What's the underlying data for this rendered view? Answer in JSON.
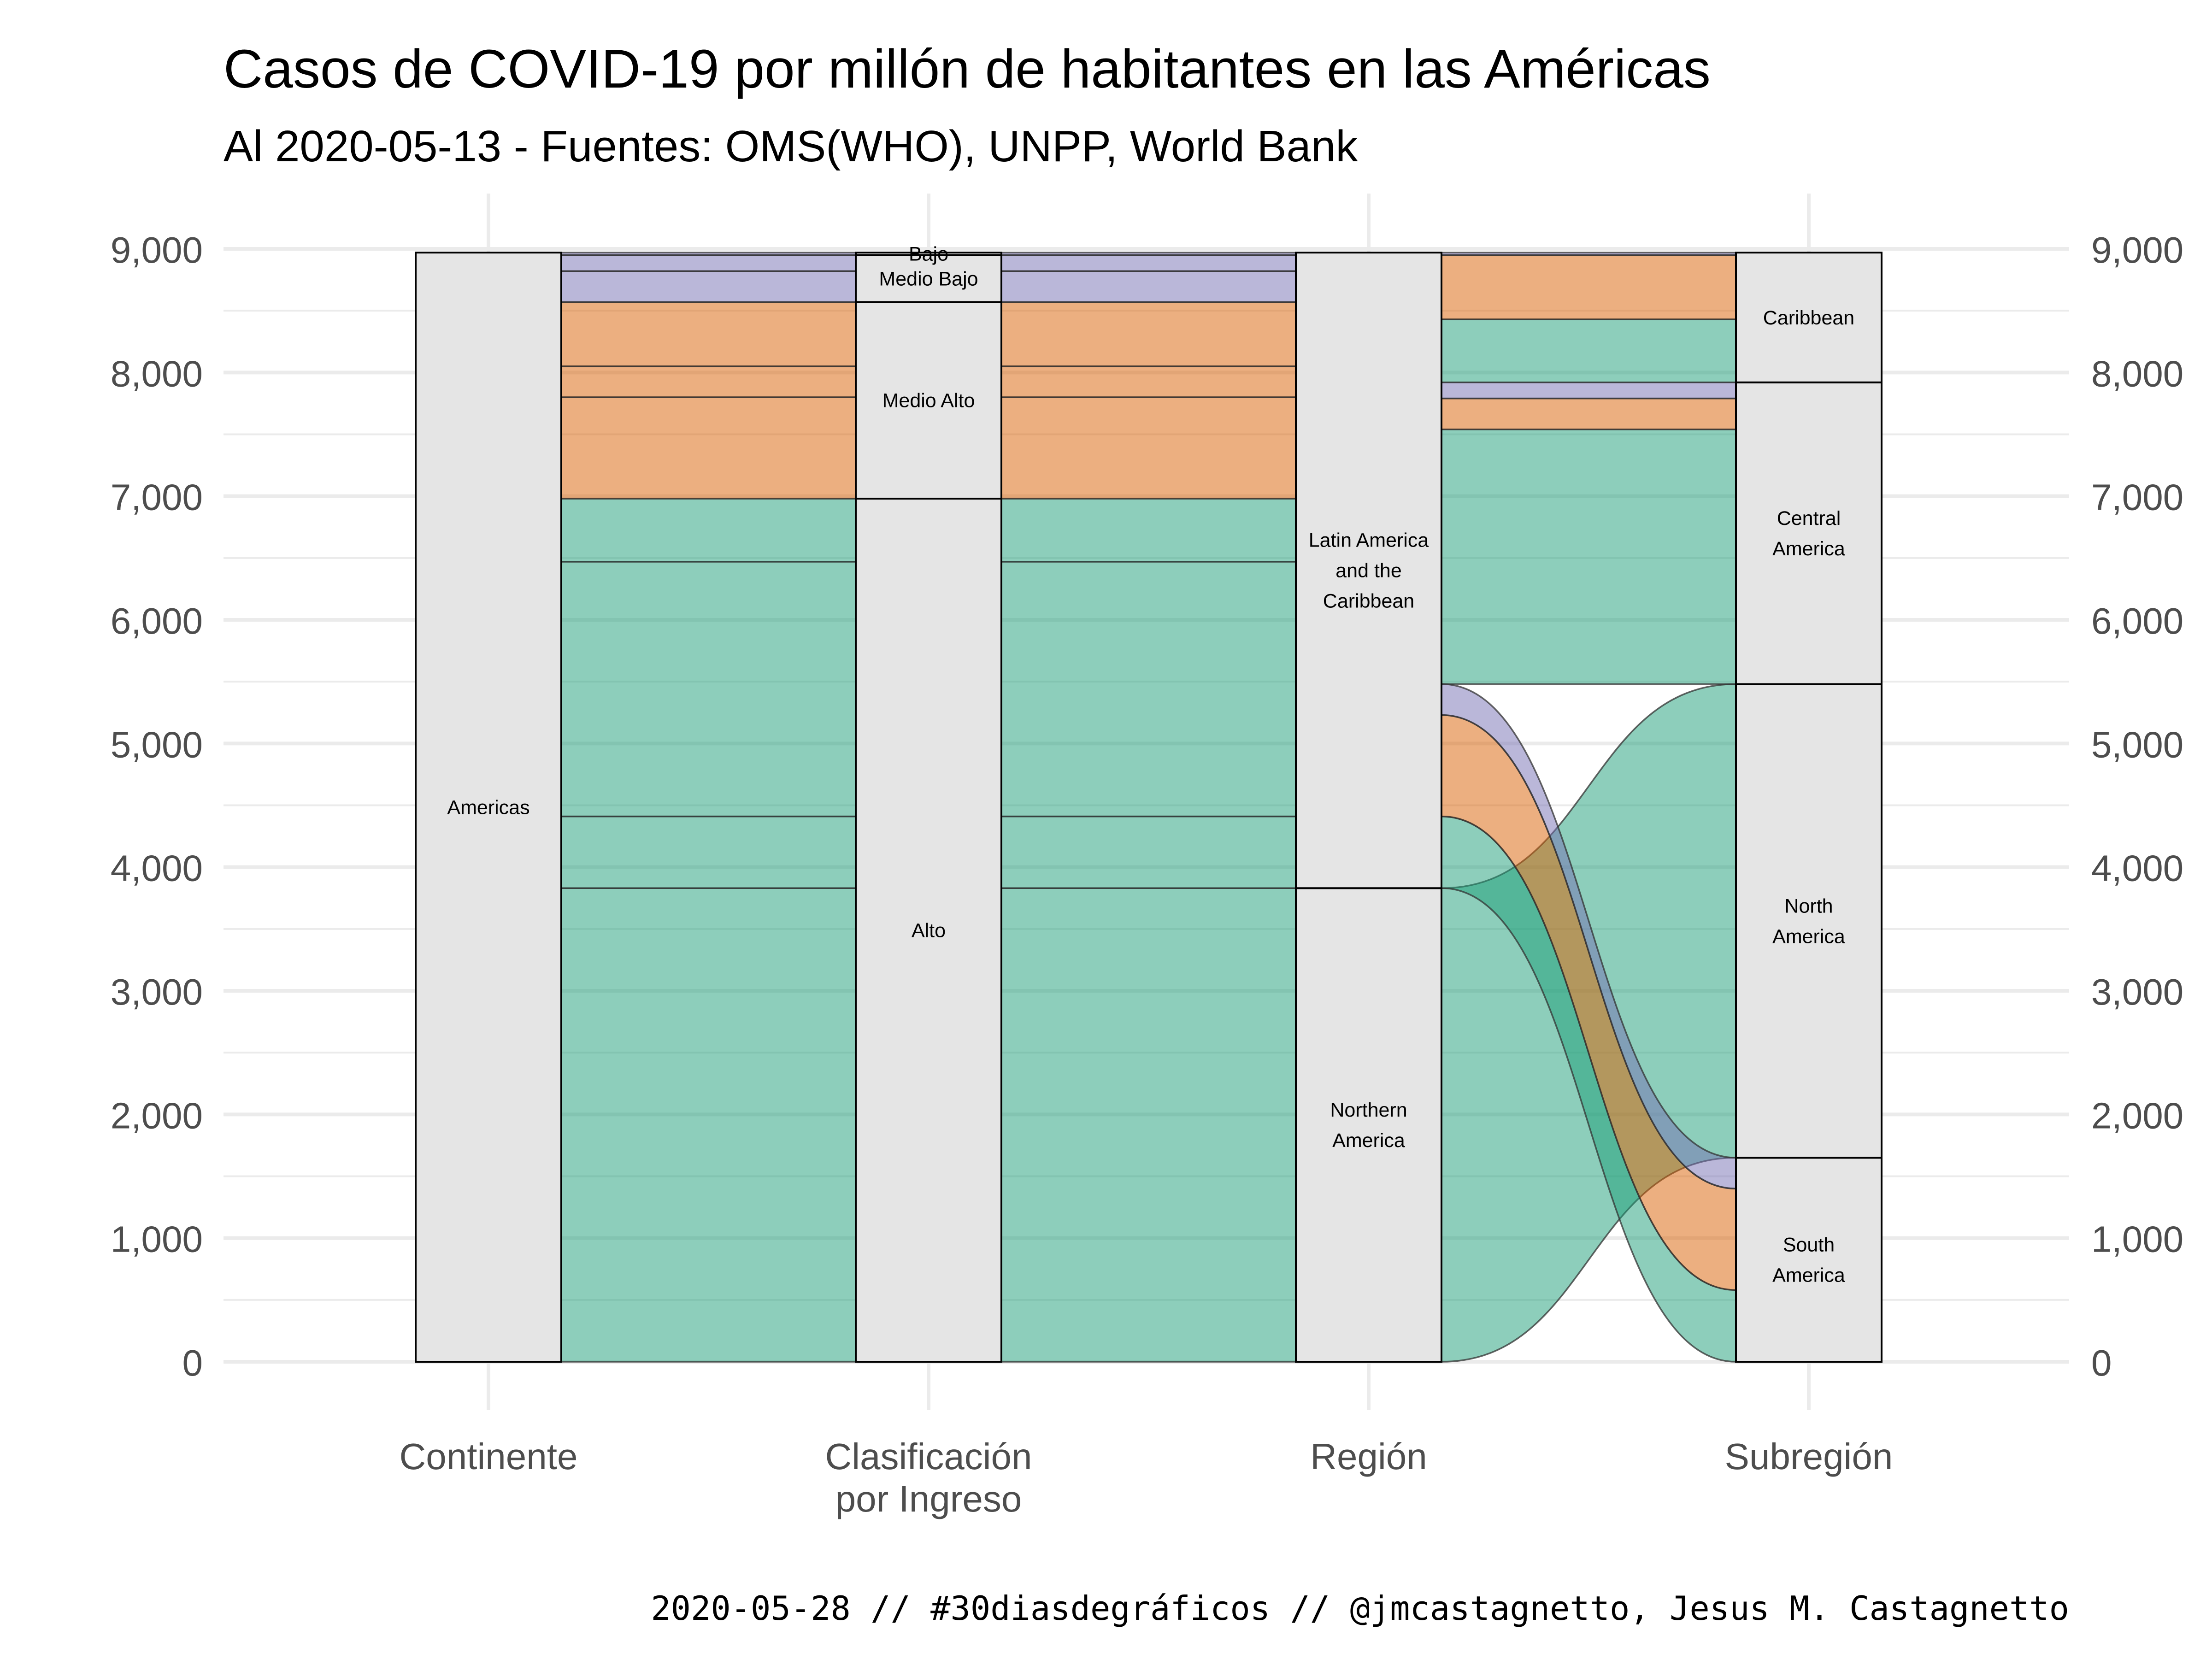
{
  "chart_data": {
    "type": "alluvial",
    "title": "Casos de COVID-19 por millón de habitantes en las Américas",
    "subtitle": "Al 2020-05-13 - Fuentes: OMS(WHO), UNPP, World Bank",
    "caption": "2020-05-28 // #30diasdegráficos // @jmcastagnetto, Jesus M. Castagnetto",
    "axes": [
      "Continente",
      "Clasificación\npor Ingreso",
      "Región",
      "Subregión"
    ],
    "y_ticks": [
      "0",
      "1,000",
      "2,000",
      "3,000",
      "4,000",
      "5,000",
      "6,000",
      "7,000",
      "8,000",
      "9,000"
    ],
    "ylim": [
      0,
      9000
    ],
    "grid": true,
    "strata": [
      [
        {
          "label": "Americas",
          "lines": [
            "Americas"
          ]
        }
      ],
      [
        {
          "label": "Alto",
          "lines": [
            "Alto"
          ]
        },
        {
          "label": "Medio Alto",
          "lines": [
            "Medio Alto"
          ]
        },
        {
          "label": "Medio Bajo",
          "lines": [
            "Medio Bajo"
          ]
        },
        {
          "label": "Bajo",
          "lines": [
            "Bajo"
          ]
        }
      ],
      [
        {
          "label": "Northern America",
          "lines": [
            "Northern",
            "America"
          ]
        },
        {
          "label": "Latin America and the Caribbean",
          "lines": [
            "Latin America",
            "and the",
            "Caribbean"
          ]
        }
      ],
      [
        {
          "label": "South America",
          "lines": [
            "South",
            "America"
          ]
        },
        {
          "label": "North America",
          "lines": [
            "North",
            "America"
          ]
        },
        {
          "label": "Central America",
          "lines": [
            "Central",
            "America"
          ]
        },
        {
          "label": "Caribbean",
          "lines": [
            "Caribbean"
          ]
        }
      ]
    ],
    "income_colors": {
      "Alto": "#1b9e77",
      "Medio Alto": "#d95f02",
      "Medio Bajo": "#7570b3",
      "Bajo": "#7570b3"
    },
    "flows": [
      {
        "income": "Alto",
        "value": 3830,
        "path": [
          "Americas",
          "Alto",
          "Northern America",
          "North America"
        ]
      },
      {
        "income": "Alto",
        "value": 580,
        "path": [
          "Americas",
          "Alto",
          "Latin America and the Caribbean",
          "South America"
        ]
      },
      {
        "income": "Alto",
        "value": 2060,
        "path": [
          "Americas",
          "Alto",
          "Latin America and the Caribbean",
          "Central America"
        ]
      },
      {
        "income": "Alto",
        "value": 510,
        "path": [
          "Americas",
          "Alto",
          "Latin America and the Caribbean",
          "Caribbean"
        ]
      },
      {
        "income": "Medio Alto",
        "value": 820,
        "path": [
          "Americas",
          "Medio Alto",
          "Latin America and the Caribbean",
          "South America"
        ]
      },
      {
        "income": "Medio Alto",
        "value": 250,
        "path": [
          "Americas",
          "Medio Alto",
          "Latin America and the Caribbean",
          "Central America"
        ]
      },
      {
        "income": "Medio Alto",
        "value": 520,
        "path": [
          "Americas",
          "Medio Alto",
          "Latin America and the Caribbean",
          "Caribbean"
        ]
      },
      {
        "income": "Medio Bajo",
        "value": 250,
        "path": [
          "Americas",
          "Medio Bajo",
          "Latin America and the Caribbean",
          "South America"
        ]
      },
      {
        "income": "Medio Bajo",
        "value": 130,
        "path": [
          "Americas",
          "Medio Bajo",
          "Latin America and the Caribbean",
          "Central America"
        ]
      },
      {
        "income": "Bajo",
        "value": 20,
        "path": [
          "Americas",
          "Bajo",
          "Latin America and the Caribbean",
          "Caribbean"
        ]
      }
    ]
  }
}
